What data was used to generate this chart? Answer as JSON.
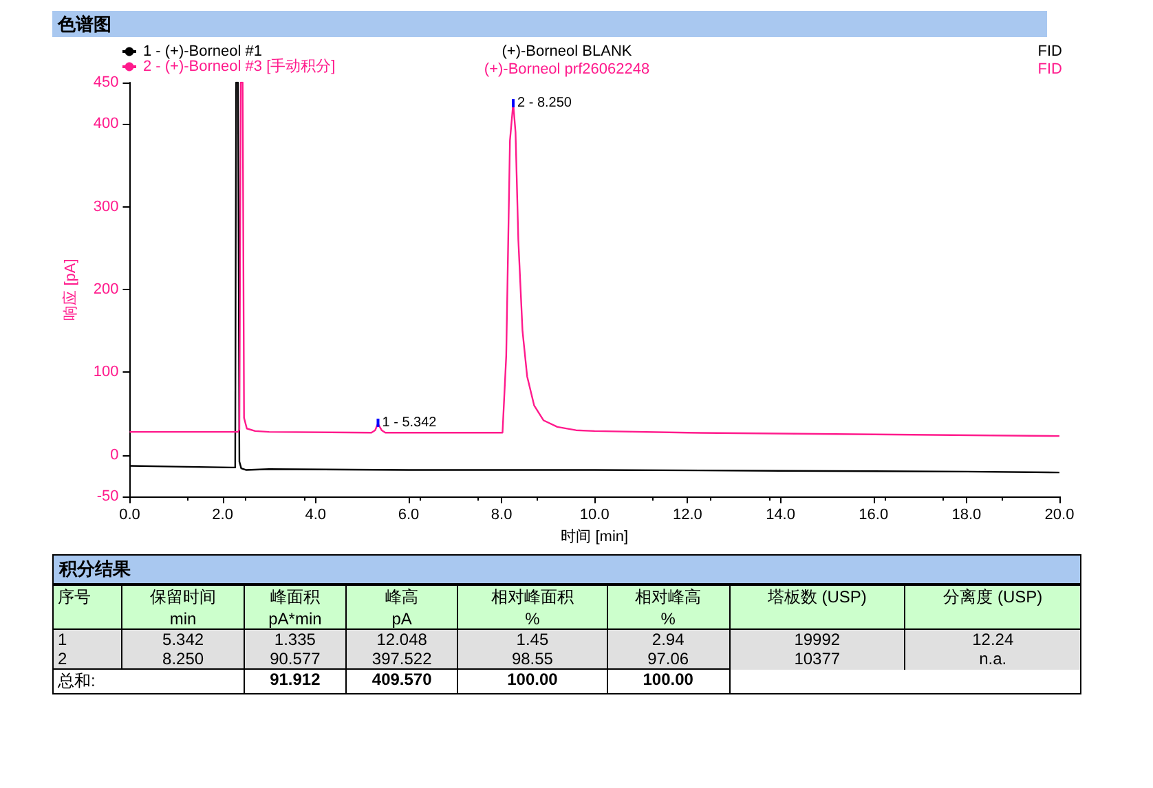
{
  "chart_data": [
    {
      "type": "line",
      "title": "色谱图",
      "xlabel": "时间 [min]",
      "ylabel": "响应 [pA]",
      "legend": "top left",
      "xlim": [
        0,
        20
      ],
      "ylim": [
        -50,
        450
      ],
      "xticks": [
        {
          "value": 0,
          "label": "0.0"
        },
        {
          "value": 2,
          "label": "2.0"
        },
        {
          "value": 4,
          "label": "4.0"
        },
        {
          "value": 6,
          "label": "6.0"
        },
        {
          "value": 8,
          "label": "8.0"
        },
        {
          "value": 10,
          "label": "10.0"
        },
        {
          "value": 12,
          "label": "12.0"
        },
        {
          "value": 14,
          "label": "14.0"
        },
        {
          "value": 16,
          "label": "16.0"
        },
        {
          "value": 18,
          "label": "18.0"
        },
        {
          "value": 20,
          "label": "20.0"
        }
      ],
      "yticks": [
        -50,
        0,
        100,
        200,
        300,
        400,
        450
      ],
      "series": [
        {
          "name": "1 - (+)-Borneol #1",
          "color": "#000000",
          "x": [
            0,
            1,
            2.2,
            2.27,
            2.29,
            2.33,
            2.36,
            2.4,
            2.5,
            3,
            6,
            10,
            14,
            18,
            20
          ],
          "values": [
            -13,
            -14,
            -15,
            -15,
            450,
            450,
            -8,
            -16,
            -18,
            -17,
            -18,
            -18,
            -19,
            -20,
            -21
          ]
        },
        {
          "name": "2 - (+)-Borneol #3 [手动积分]",
          "color": "#ff1a8c",
          "x": [
            0,
            2,
            2.33,
            2.36,
            2.39,
            2.43,
            2.46,
            2.52,
            2.7,
            3,
            5.2,
            5.28,
            5.34,
            5.42,
            5.5,
            8.02,
            8.1,
            8.18,
            8.25,
            8.3,
            8.36,
            8.45,
            8.55,
            8.7,
            8.9,
            9.2,
            9.6,
            10,
            12,
            16,
            20
          ],
          "values": [
            28,
            28,
            28,
            31,
            450,
            450,
            45,
            32,
            29,
            28,
            27,
            30,
            38,
            30,
            27,
            27,
            120,
            380,
            425,
            390,
            260,
            150,
            95,
            60,
            42,
            34,
            30,
            29,
            27,
            25,
            23
          ]
        }
      ],
      "annotations": [
        "(+)-Borneol BLANK",
        "FID",
        "(+)-Borneol prf26062248",
        "FID",
        {
          "text": "1 - 5.342",
          "x": 5.342,
          "y": 39
        },
        {
          "text": "2 - 8.250",
          "x": 8.25,
          "y": 425
        }
      ]
    },
    {
      "type": "other",
      "title": "积分结果",
      "annotations": [
        "序号",
        "保留时间\nmin",
        "峰面积\npA*min",
        "峰高\npA",
        "相对峰面积\n%",
        "相对峰高\n%",
        "塔板数 (USP)",
        "分离度 (USP)",
        "1",
        "5.342",
        "1.335",
        "12.048",
        "1.45",
        "2.94",
        "19992",
        "12.24",
        "2",
        "8.250",
        "90.577",
        "397.522",
        "98.55",
        "97.06",
        "10377",
        "n.a.",
        "总和:",
        "91.912",
        "409.570",
        "100.00",
        "100.00"
      ]
    }
  ]
}
